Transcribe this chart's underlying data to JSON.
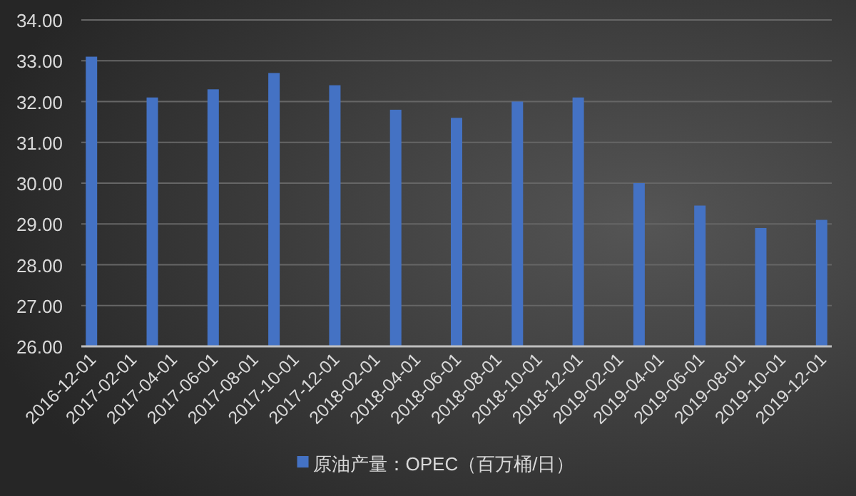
{
  "chart_data": {
    "type": "bar",
    "categories": [
      "2016-12-01",
      null,
      "2017-02-01",
      null,
      "2017-04-01",
      null,
      "2017-06-01",
      null,
      "2017-08-01",
      null,
      "2017-10-01",
      null,
      "2017-12-01",
      null,
      "2018-02-01",
      null,
      "2018-04-01",
      null,
      "2018-06-01",
      null,
      "2018-08-01",
      null,
      "2018-10-01",
      null,
      "2018-12-01",
      null,
      "2019-02-01",
      null,
      "2019-04-01",
      null,
      "2019-06-01",
      null,
      "2019-08-01",
      null,
      "2019-10-01",
      null,
      "2019-12-01"
    ],
    "series": [
      {
        "name": "原油产量：OPEC（百万桶/日）",
        "color": "#4472c4",
        "values": [
          33.1,
          null,
          null,
          32.1,
          null,
          null,
          32.3,
          null,
          null,
          32.7,
          null,
          null,
          32.4,
          null,
          null,
          31.8,
          null,
          null,
          31.6,
          null,
          null,
          32.0,
          null,
          null,
          32.1,
          null,
          null,
          30.0,
          null,
          null,
          29.45,
          null,
          null,
          28.9,
          null,
          null,
          29.1
        ]
      }
    ],
    "ylim": [
      26,
      34
    ],
    "yticks": [
      {
        "value": 26,
        "label": "26.00"
      },
      {
        "value": 27,
        "label": "27.00"
      },
      {
        "value": 28,
        "label": "28.00"
      },
      {
        "value": 29,
        "label": "29.00"
      },
      {
        "value": 30,
        "label": "30.00"
      },
      {
        "value": 31,
        "label": "31.00"
      },
      {
        "value": 32,
        "label": "32.00"
      },
      {
        "value": 33,
        "label": "33.00"
      },
      {
        "value": 34,
        "label": "34.00"
      }
    ],
    "grid": "y",
    "legend": "bottom"
  }
}
